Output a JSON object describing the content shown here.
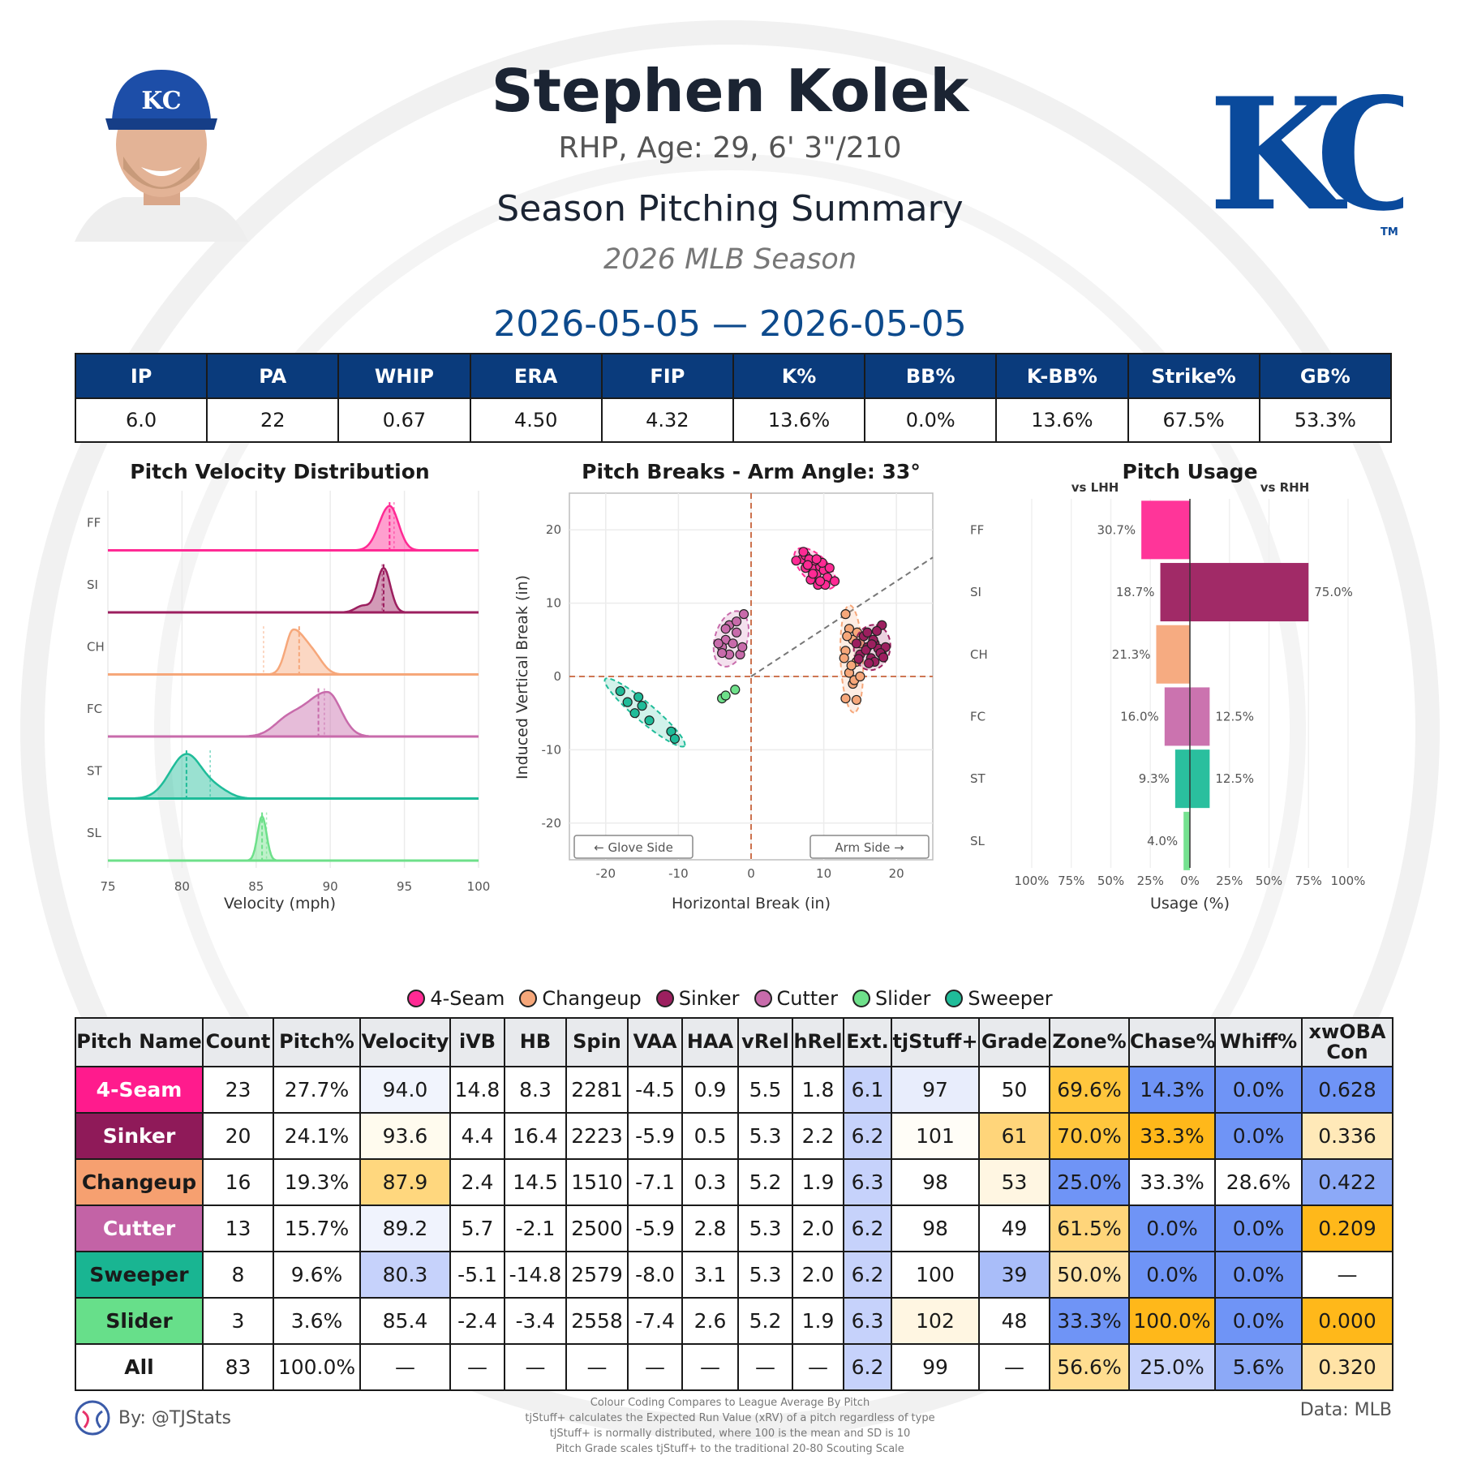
{
  "header": {
    "player_name": "Stephen Kolek",
    "player_info": "RHP, Age: 29, 6' 3\"/210",
    "summary_title": "Season Pitching Summary",
    "season": "2026 MLB Season",
    "date_range": "2026-05-05 — 2026-05-05",
    "cap_logo_text": "KC",
    "team_logo_text": "KC",
    "team_logo_tm": "TM"
  },
  "stats": {
    "headers": [
      "IP",
      "PA",
      "WHIP",
      "ERA",
      "FIP",
      "K%",
      "BB%",
      "K-BB%",
      "Strike%",
      "GB%"
    ],
    "values": [
      "6.0",
      "22",
      "0.67",
      "4.50",
      "4.32",
      "13.6%",
      "0.0%",
      "13.6%",
      "67.5%",
      "53.3%"
    ]
  },
  "colors": {
    "FF": "#ff2a94",
    "SI": "#9c1f5f",
    "CH": "#f6a77a",
    "FC": "#c86bab",
    "ST": "#1fbc99",
    "SL": "#6ee08a",
    "header_blue": "#0a3b7c",
    "date_blue": "#0d4a8c"
  },
  "chart_data": [
    {
      "type": "area",
      "title": "Pitch Velocity Distribution",
      "xlabel": "Velocity (mph)",
      "ylabel": "",
      "xlim": [
        75,
        100
      ],
      "xticks": [
        "75",
        "80",
        "85",
        "90",
        "95",
        "100"
      ],
      "series": [
        {
          "name": "FF",
          "peak_mph": 94.0,
          "mean_mph": 94.0,
          "league_mph": 94.3
        },
        {
          "name": "SI",
          "peak_mph": 93.6,
          "mean_mph": 93.6,
          "league_mph": 93.5
        },
        {
          "name": "CH",
          "peak_mph": 87.5,
          "mean_mph": 87.9,
          "league_mph": 85.5
        },
        {
          "name": "FC",
          "peak_mph": 89.8,
          "mean_mph": 89.2,
          "league_mph": 89.6
        },
        {
          "name": "ST",
          "peak_mph": 80.3,
          "mean_mph": 80.3,
          "league_mph": 81.9
        },
        {
          "name": "SL",
          "peak_mph": 85.4,
          "mean_mph": 85.4,
          "league_mph": 85.7
        }
      ]
    },
    {
      "type": "scatter",
      "title": "Pitch Breaks - Arm Angle: 33°",
      "xlabel": "Horizontal Break (in)",
      "ylabel": "Induced Vertical Break (in)",
      "xlim": [
        -25,
        25
      ],
      "ylim": [
        -25,
        25
      ],
      "xticks": [
        "-20",
        "-10",
        "0",
        "10",
        "20"
      ],
      "yticks": [
        "20",
        "10",
        "0",
        "-10",
        "-20"
      ],
      "arm_angle_deg": 33,
      "annotations": [
        "← Glove Side",
        "Arm Side →"
      ],
      "series": [
        {
          "name": "FF",
          "points": [
            [
              7,
              16
            ],
            [
              7.5,
              16.5
            ],
            [
              8,
              15.5
            ],
            [
              8.5,
              14.8
            ],
            [
              9,
              14
            ],
            [
              9.5,
              15
            ],
            [
              10,
              14.5
            ],
            [
              10.5,
              13.5
            ],
            [
              7.5,
              14.8
            ],
            [
              8.2,
              13.2
            ],
            [
              9.2,
              12.5
            ],
            [
              10.2,
              12.5
            ],
            [
              11.5,
              13
            ],
            [
              6.2,
              15.8
            ],
            [
              7.2,
              17
            ],
            [
              8.8,
              15.8
            ],
            [
              9.8,
              15.5
            ],
            [
              8.5,
              14
            ],
            [
              9.5,
              13
            ],
            [
              8,
              16
            ],
            [
              10.8,
              14.8
            ],
            [
              7.8,
              15.2
            ],
            [
              9,
              16
            ]
          ]
        },
        {
          "name": "SI",
          "points": [
            [
              16,
              4
            ],
            [
              17,
              4.5
            ],
            [
              18,
              3
            ],
            [
              15.5,
              5.5
            ],
            [
              16.5,
              2.5
            ],
            [
              17.5,
              3.8
            ],
            [
              18.5,
              4
            ],
            [
              15,
              3
            ],
            [
              16,
              6
            ],
            [
              17,
              2
            ],
            [
              18,
              7
            ],
            [
              14.5,
              4.5
            ],
            [
              16.8,
              5
            ],
            [
              17.8,
              3.2
            ],
            [
              15.8,
              3.6
            ],
            [
              18.2,
              2.6
            ],
            [
              16.2,
              1.8
            ],
            [
              17.3,
              6.2
            ],
            [
              14.8,
              2.4
            ],
            [
              16.6,
              4.4
            ]
          ]
        },
        {
          "name": "CH",
          "points": [
            [
              13,
              8.5
            ],
            [
              13.5,
              6.5
            ],
            [
              14,
              5
            ],
            [
              13,
              3.5
            ],
            [
              14.5,
              2
            ],
            [
              13.5,
              0.5
            ],
            [
              14,
              -1
            ],
            [
              13,
              -3
            ],
            [
              14.5,
              -3.2
            ],
            [
              15,
              4.5
            ],
            [
              13.8,
              1.5
            ],
            [
              14.2,
              -0.5
            ],
            [
              13.2,
              5.5
            ],
            [
              15,
              0
            ],
            [
              12.8,
              2.5
            ],
            [
              14.6,
              6
            ]
          ]
        },
        {
          "name": "FC",
          "points": [
            [
              -3,
              7
            ],
            [
              -2,
              7.5
            ],
            [
              -1,
              8.5
            ],
            [
              -3.5,
              5
            ],
            [
              -4,
              4
            ],
            [
              -2.5,
              4.5
            ],
            [
              -3,
              3
            ],
            [
              -1.5,
              3
            ],
            [
              -4.5,
              4.5
            ],
            [
              -2,
              6
            ],
            [
              -3.5,
              6.5
            ],
            [
              -4,
              3.2
            ],
            [
              -1.2,
              4
            ]
          ]
        },
        {
          "name": "ST",
          "points": [
            [
              -18,
              -2
            ],
            [
              -17,
              -3.5
            ],
            [
              -16,
              -5
            ],
            [
              -15.5,
              -2.8
            ],
            [
              -15,
              -4
            ],
            [
              -14,
              -6
            ],
            [
              -11,
              -7.5
            ],
            [
              -10.5,
              -8.5
            ]
          ]
        },
        {
          "name": "SL",
          "points": [
            [
              -4,
              -3
            ],
            [
              -3.5,
              -2.6
            ],
            [
              -2.2,
              -1.8
            ]
          ]
        }
      ]
    },
    {
      "type": "bar",
      "title": "Pitch Usage",
      "xlabel": "Usage (%)",
      "ylabel": "",
      "xlim": [
        -100,
        100
      ],
      "xticks": [
        "100%",
        "75%",
        "50%",
        "25%",
        "0%",
        "25%",
        "50%",
        "75%",
        "100%"
      ],
      "categories": [
        "FF",
        "SI",
        "CH",
        "FC",
        "ST",
        "SL"
      ],
      "series": [
        {
          "name": "vs LHH",
          "values": [
            30.7,
            18.7,
            21.3,
            16.0,
            9.3,
            4.0
          ],
          "labels": [
            "30.7%",
            "18.7%",
            "21.3%",
            "16.0%",
            "9.3%",
            "4.0%"
          ]
        },
        {
          "name": "vs RHH",
          "values": [
            0,
            75.0,
            0,
            12.5,
            12.5,
            0
          ],
          "labels": [
            "",
            "75.0%",
            "",
            "12.5%",
            "12.5%",
            ""
          ]
        }
      ]
    }
  ],
  "legend": [
    {
      "key": "FF",
      "label": "4-Seam"
    },
    {
      "key": "CH",
      "label": "Changeup"
    },
    {
      "key": "SI",
      "label": "Sinker"
    },
    {
      "key": "FC",
      "label": "Cutter"
    },
    {
      "key": "SL",
      "label": "Slider"
    },
    {
      "key": "ST",
      "label": "Sweeper"
    }
  ],
  "pitch_table": {
    "headers": [
      "Pitch Name",
      "Count",
      "Pitch%",
      "Velocity",
      "iVB",
      "HB",
      "Spin",
      "VAA",
      "HAA",
      "vRel",
      "hRel",
      "Ext.",
      "tjStuff+",
      "Grade",
      "Zone%",
      "Chase%",
      "Whiff%",
      "xwOBA Con"
    ],
    "rows": [
      {
        "key": "FF",
        "bg": "#ff1b8d",
        "fg": "#ffffff",
        "cells": [
          "4-Seam",
          "23",
          "27.7%",
          "94.0",
          "14.8",
          "8.3",
          "2281",
          "-4.5",
          "0.9",
          "5.5",
          "1.8",
          "6.1",
          "97",
          "50",
          "69.6%",
          "14.3%",
          "0.0%",
          "0.628"
        ],
        "cell_bg": [
          "",
          "#ffffff",
          "#ffffff",
          "#f1f4fd",
          "#ffffff",
          "#ffffff",
          "#ffffff",
          "#ffffff",
          "#ffffff",
          "#ffffff",
          "#ffffff",
          "#c6d2fb",
          "#e8edfc",
          "#ffffff",
          "#ffc63d",
          "#6f94f6",
          "#6f94f6",
          "#6f94f6"
        ]
      },
      {
        "key": "SI",
        "bg": "#8f1a59",
        "fg": "#ffffff",
        "cells": [
          "Sinker",
          "20",
          "24.1%",
          "93.6",
          "4.4",
          "16.4",
          "2223",
          "-5.9",
          "0.5",
          "5.3",
          "2.2",
          "6.2",
          "101",
          "61",
          "70.0%",
          "33.3%",
          "0.0%",
          "0.336"
        ],
        "cell_bg": [
          "",
          "#ffffff",
          "#ffffff",
          "#fffbee",
          "#ffffff",
          "#ffffff",
          "#ffffff",
          "#ffffff",
          "#ffffff",
          "#ffffff",
          "#ffffff",
          "#c6d2fb",
          "#fffdf7",
          "#ffd57a",
          "#ffc63d",
          "#ffb81a",
          "#6f94f6",
          "#ffe9b8"
        ]
      },
      {
        "key": "CH",
        "bg": "#f6a070",
        "fg": "#1a1a1a",
        "cells": [
          "Changeup",
          "16",
          "19.3%",
          "87.9",
          "2.4",
          "14.5",
          "1510",
          "-7.1",
          "0.3",
          "5.2",
          "1.9",
          "6.3",
          "98",
          "53",
          "25.0%",
          "33.3%",
          "28.6%",
          "0.422"
        ],
        "cell_bg": [
          "",
          "#ffffff",
          "#ffffff",
          "#ffd77e",
          "#ffffff",
          "#ffffff",
          "#ffffff",
          "#ffffff",
          "#ffffff",
          "#ffffff",
          "#ffffff",
          "#c6d2fb",
          "#ffffff",
          "#fff6e2",
          "#6f94f6",
          "#ffffff",
          "#ffffff",
          "#8ca9f7"
        ]
      },
      {
        "key": "FC",
        "bg": "#c363a6",
        "fg": "#ffffff",
        "cells": [
          "Cutter",
          "13",
          "15.7%",
          "89.2",
          "5.7",
          "-2.1",
          "2500",
          "-5.9",
          "2.8",
          "5.3",
          "2.0",
          "6.2",
          "98",
          "49",
          "61.5%",
          "0.0%",
          "0.0%",
          "0.209"
        ],
        "cell_bg": [
          "",
          "#ffffff",
          "#ffffff",
          "#f0f3fd",
          "#ffffff",
          "#ffffff",
          "#ffffff",
          "#ffffff",
          "#ffffff",
          "#ffffff",
          "#ffffff",
          "#c6d2fb",
          "#ffffff",
          "#ffffff",
          "#ffd57a",
          "#6f94f6",
          "#6f94f6",
          "#ffb81a"
        ]
      },
      {
        "key": "ST",
        "bg": "#19b592",
        "fg": "#1a1a1a",
        "cells": [
          "Sweeper",
          "8",
          "9.6%",
          "80.3",
          "-5.1",
          "-14.8",
          "2579",
          "-8.0",
          "3.1",
          "5.3",
          "2.0",
          "6.2",
          "100",
          "39",
          "50.0%",
          "0.0%",
          "0.0%",
          "—"
        ],
        "cell_bg": [
          "",
          "#ffffff",
          "#ffffff",
          "#c6d2fb",
          "#ffffff",
          "#ffffff",
          "#ffffff",
          "#ffffff",
          "#ffffff",
          "#ffffff",
          "#ffffff",
          "#c6d2fb",
          "#ffffff",
          "#a9bdf9",
          "#ffe3a6",
          "#6f94f6",
          "#6f94f6",
          "#ffffff"
        ]
      },
      {
        "key": "SL",
        "bg": "#67df8a",
        "fg": "#1a1a1a",
        "cells": [
          "Slider",
          "3",
          "3.6%",
          "85.4",
          "-2.4",
          "-3.4",
          "2558",
          "-7.4",
          "2.6",
          "5.2",
          "1.9",
          "6.3",
          "102",
          "48",
          "33.3%",
          "100.0%",
          "0.0%",
          "0.000"
        ],
        "cell_bg": [
          "",
          "#ffffff",
          "#ffffff",
          "#ffffff",
          "#ffffff",
          "#ffffff",
          "#ffffff",
          "#ffffff",
          "#ffffff",
          "#ffffff",
          "#ffffff",
          "#c6d2fb",
          "#fff6e2",
          "#ffffff",
          "#6f94f6",
          "#ffb81a",
          "#6f94f6",
          "#ffb81a"
        ]
      },
      {
        "key": "ALL",
        "bg": "#ffffff",
        "fg": "#1a1a1a",
        "cells": [
          "All",
          "83",
          "100.0%",
          "—",
          "—",
          "—",
          "—",
          "—",
          "—",
          "—",
          "—",
          "6.2",
          "99",
          "—",
          "56.6%",
          "25.0%",
          "5.6%",
          "0.320"
        ],
        "cell_bg": [
          "",
          "#ffffff",
          "#ffffff",
          "#ffffff",
          "#ffffff",
          "#ffffff",
          "#ffffff",
          "#ffffff",
          "#ffffff",
          "#ffffff",
          "#ffffff",
          "#c6d2fb",
          "#ffffff",
          "#ffffff",
          "#ffdd90",
          "#c6d2fb",
          "#8ca9f7",
          "#ffe3a6"
        ]
      }
    ]
  },
  "footer": {
    "by": "By: @TJStats",
    "data_source": "Data: MLB",
    "notes": [
      "Colour Coding Compares to League Average By Pitch",
      "tjStuff+ calculates the Expected Run Value (xRV) of a pitch regardless of type",
      "tjStuff+ is normally distributed, where 100 is the mean and SD is 10",
      "Pitch Grade scales tjStuff+ to the traditional 20-80 Scouting Scale"
    ]
  }
}
